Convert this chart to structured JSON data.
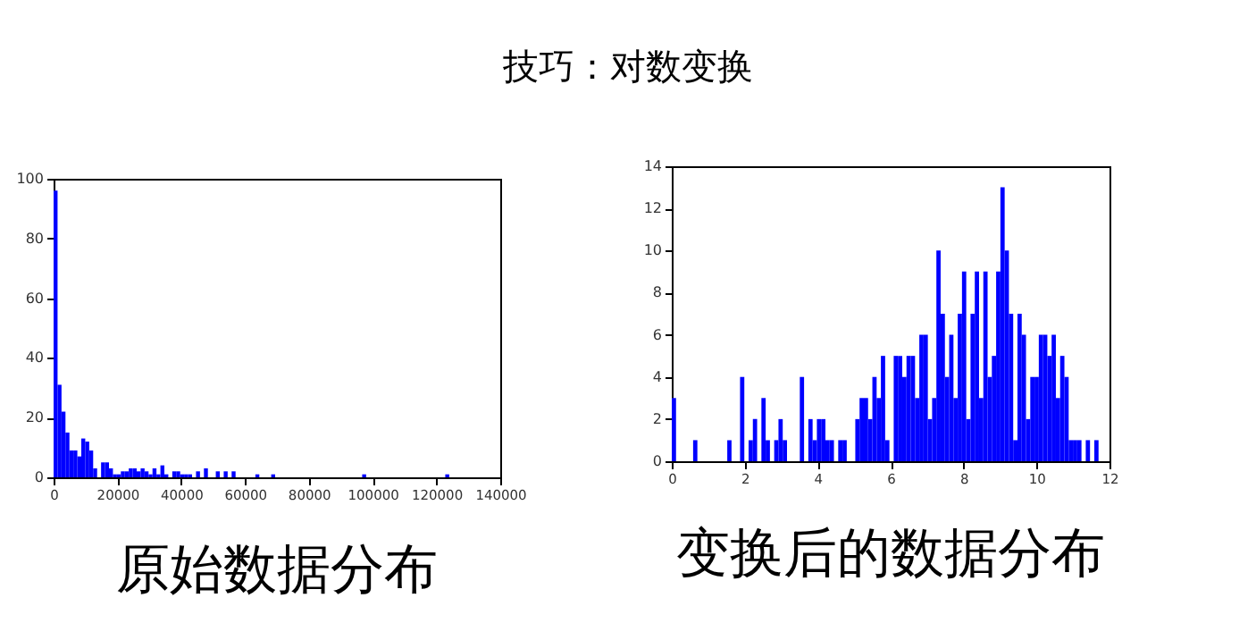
{
  "chart_data": [
    {
      "type": "histogram",
      "title": "原始数据分布",
      "annotations": [
        "技巧：对数变换"
      ],
      "color": "#0000ff",
      "grid": false,
      "bins": [
        0,
        1240,
        2480,
        3720,
        4960,
        6200,
        7440,
        8680,
        9920,
        11160,
        12400,
        13640,
        14880,
        16120,
        17360,
        18600,
        19840,
        21080,
        22320,
        23560,
        24800,
        26040,
        27280,
        28520,
        29760,
        31000,
        32240,
        33480,
        34720,
        35960,
        37200,
        38440,
        39680,
        40920,
        42160,
        43400,
        44640,
        45880,
        47120,
        48360,
        50840,
        52080,
        53320,
        54560,
        55800,
        57040,
        63240,
        64480,
        68200,
        69440,
        96720,
        97960,
        122760,
        124000
      ],
      "values": [
        96,
        31,
        22,
        15,
        9,
        9,
        7,
        13,
        12,
        9,
        3,
        0,
        5,
        5,
        3,
        1,
        1,
        2,
        2,
        3,
        3,
        2,
        3,
        2,
        1,
        3,
        1,
        4,
        1,
        0,
        2,
        2,
        1,
        1,
        1,
        0,
        2,
        0,
        3,
        0,
        2,
        0,
        2,
        0,
        2,
        0,
        1,
        0,
        1,
        0,
        1,
        0,
        1
      ],
      "xlim": [
        0,
        140000
      ],
      "xticks": [
        0,
        20000,
        40000,
        60000,
        80000,
        100000,
        120000,
        140000
      ],
      "ylim": [
        0,
        100
      ],
      "yticks": [
        0,
        20,
        40,
        60,
        80,
        100
      ]
    },
    {
      "type": "histogram",
      "title": "变换后的数据分布",
      "color": "#0000ff",
      "grid": false,
      "bins": [
        0,
        0.117,
        0.234,
        0.351,
        0.468,
        0.585,
        0.702,
        0.819,
        0.936,
        1.053,
        1.17,
        1.287,
        1.404,
        1.521,
        1.638,
        1.755,
        1.872,
        1.989,
        2.106,
        2.223,
        2.34,
        2.457,
        2.574,
        2.691,
        2.808,
        2.925,
        3.042,
        3.159,
        3.276,
        3.393,
        3.51,
        3.627,
        3.744,
        3.861,
        3.978,
        4.095,
        4.212,
        4.329,
        4.446,
        4.563,
        4.68,
        4.797,
        4.914,
        5.031,
        5.148,
        5.265,
        5.382,
        5.499,
        5.616,
        5.733,
        5.85,
        5.967,
        6.084,
        6.201,
        6.318,
        6.435,
        6.552,
        6.669,
        6.786,
        6.903,
        7.02,
        7.137,
        7.254,
        7.371,
        7.488,
        7.605,
        7.722,
        7.839,
        7.956,
        8.073,
        8.19,
        8.307,
        8.424,
        8.541,
        8.658,
        8.775,
        8.892,
        9.009,
        9.126,
        9.243,
        9.36,
        9.477,
        9.594,
        9.711,
        9.828,
        9.945,
        10.062,
        10.179,
        10.296,
        10.413,
        10.53,
        10.647,
        10.764,
        10.881,
        10.998,
        11.115,
        11.232,
        11.349,
        11.466,
        11.583,
        11.7
      ],
      "values": [
        3,
        0,
        0,
        0,
        0,
        1,
        0,
        0,
        0,
        0,
        0,
        0,
        0,
        1,
        0,
        0,
        4,
        0,
        1,
        2,
        0,
        3,
        1,
        0,
        1,
        2,
        1,
        0,
        0,
        0,
        4,
        0,
        2,
        1,
        2,
        2,
        1,
        1,
        0,
        1,
        1,
        0,
        0,
        2,
        3,
        3,
        2,
        4,
        3,
        5,
        1,
        0,
        5,
        5,
        4,
        5,
        5,
        3,
        6,
        6,
        2,
        3,
        10,
        7,
        4,
        6,
        3,
        7,
        9,
        2,
        7,
        9,
        3,
        9,
        4,
        5,
        9,
        13,
        10,
        7,
        1,
        7,
        6,
        2,
        4,
        4,
        6,
        6,
        5,
        6,
        3,
        5,
        4,
        1,
        1,
        1,
        0,
        1,
        0,
        1
      ],
      "xlim": [
        0,
        12
      ],
      "xticks": [
        0,
        2,
        4,
        6,
        8,
        10,
        12
      ],
      "ylim": [
        0,
        14
      ],
      "yticks": [
        0,
        2,
        4,
        6,
        8,
        10,
        12,
        14
      ]
    }
  ]
}
